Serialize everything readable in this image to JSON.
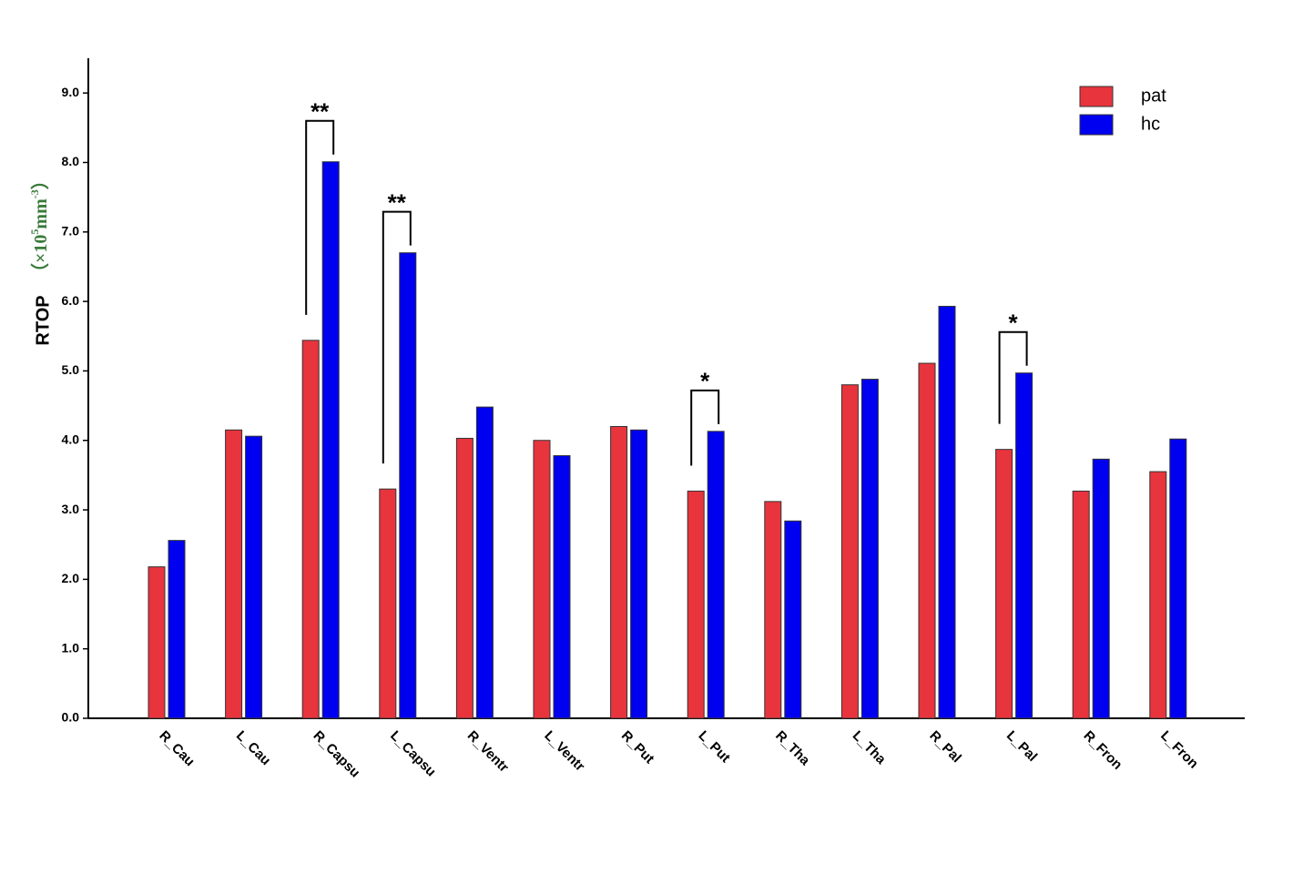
{
  "chart_data": {
    "type": "bar",
    "y_label": "RTOP",
    "y_unit": [
      "（×10",
      "5",
      "mm",
      "-3",
      "）"
    ],
    "y_unit_color": "#3a7a3a",
    "categories": [
      "R_Cau",
      "L_Cau",
      "R_Capsu",
      "L_Capsu",
      "R_Ventr",
      "L_Ventr",
      "R_Put",
      "L_Put",
      "R_Tha",
      "L_Tha",
      "R_Pal",
      "L_Pal",
      "R_Fron",
      "L_Fron"
    ],
    "series": [
      {
        "name": "pat",
        "color": "#e8343d",
        "values": [
          2.18,
          4.15,
          5.44,
          3.3,
          4.03,
          4.0,
          4.2,
          3.27,
          3.12,
          4.8,
          5.11,
          3.87,
          3.27,
          3.55
        ]
      },
      {
        "name": "hc",
        "color": "#0000f0",
        "values": [
          2.56,
          4.06,
          8.01,
          6.7,
          4.48,
          3.78,
          4.15,
          4.13,
          2.84,
          4.88,
          5.93,
          4.97,
          3.73,
          4.02
        ]
      }
    ],
    "ylim": [
      0,
      9.5
    ],
    "yticks": [
      {
        "value": 0,
        "label": "0.0"
      },
      {
        "value": 1,
        "label": "1.0"
      },
      {
        "value": 2,
        "label": "2.0"
      },
      {
        "value": 3,
        "label": "3.0"
      },
      {
        "value": 4,
        "label": "4.0"
      },
      {
        "value": 5,
        "label": "5.0"
      },
      {
        "value": 6,
        "label": "6.0"
      },
      {
        "value": 7,
        "label": "7.0"
      },
      {
        "value": 8,
        "label": "8.0"
      },
      {
        "value": 9,
        "label": "9.0"
      }
    ],
    "annotations": [
      {
        "category": "R_Capsu",
        "text": "**"
      },
      {
        "category": "L_Capsu",
        "text": "**"
      },
      {
        "category": "L_Put",
        "text": "*"
      },
      {
        "category": "L_Pal",
        "text": "*"
      }
    ],
    "legend": "top-right"
  }
}
